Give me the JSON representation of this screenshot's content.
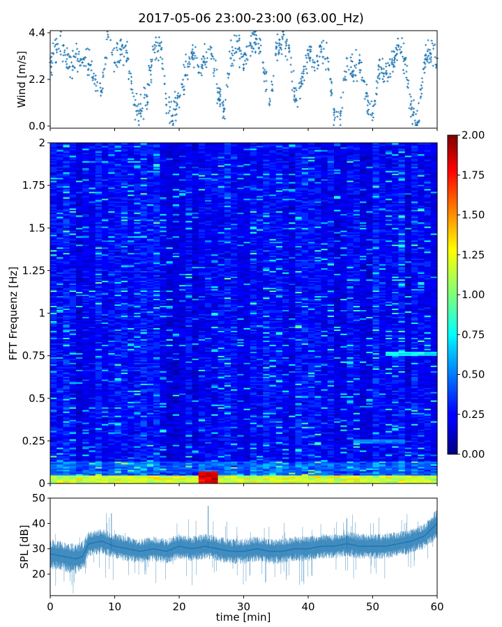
{
  "figure": {
    "title": "2017-05-06 23:00-23:00 (63.00_Hz)"
  },
  "chart_data": [
    {
      "type": "scatter",
      "panel": "wind",
      "ylabel": "Wind [m/s]",
      "xlabel": "",
      "xlim": [
        0,
        60
      ],
      "ylim": [
        -0.1,
        4.5
      ],
      "yticks": [
        0.0,
        2.2,
        4.4
      ],
      "ytick_labels": [
        "0.0",
        "2.2",
        "4.4"
      ],
      "xticks": [
        0,
        10,
        20,
        30,
        40,
        50,
        60
      ],
      "marker_color": "#1f77b4",
      "marker": "+",
      "grid": false,
      "series": [
        {
          "x": [
            0,
            1,
            2,
            3,
            4,
            5,
            6,
            7,
            8,
            9,
            10,
            11,
            12,
            13,
            14,
            15,
            16,
            17,
            18,
            19,
            20,
            21,
            22,
            23,
            24,
            25,
            26,
            27,
            28,
            29,
            30,
            31,
            32,
            33,
            34,
            35,
            36,
            37,
            38,
            39,
            40,
            41,
            42,
            43,
            44,
            45,
            46,
            47,
            48,
            49,
            50,
            51,
            52,
            53,
            54,
            55,
            56,
            57,
            58,
            59,
            60
          ],
          "y": [
            3.0,
            3.6,
            3.8,
            2.8,
            3.4,
            3.0,
            2.9,
            2.2,
            1.6,
            4.2,
            3.0,
            3.6,
            3.2,
            1.0,
            0.6,
            1.4,
            3.6,
            3.9,
            1.0,
            0.5,
            1.4,
            2.4,
            3.5,
            2.8,
            3.0,
            3.4,
            1.6,
            0.8,
            3.2,
            4.0,
            2.9,
            3.8,
            4.1,
            3.0,
            1.0,
            3.4,
            4.2,
            3.8,
            1.2,
            2.0,
            3.4,
            3.0,
            3.5,
            3.2,
            0.8,
            0.6,
            3.2,
            2.6,
            3.0,
            1.4,
            0.6,
            2.8,
            2.5,
            3.0,
            3.8,
            3.2,
            0.8,
            0.2,
            3.0,
            3.4,
            3.2
          ]
        }
      ]
    },
    {
      "type": "heatmap",
      "panel": "spectrogram",
      "ylabel": "FFT Frequenz [Hz]",
      "xlabel": "",
      "xlim": [
        0,
        60
      ],
      "ylim": [
        0,
        2
      ],
      "yticks": [
        0,
        0.25,
        0.5,
        0.75,
        1,
        1.25,
        1.5,
        1.75,
        2
      ],
      "ytick_labels": [
        "0",
        "0.25",
        "0.5",
        "0.75",
        "1",
        "1.25",
        "1.5",
        "1.75",
        "2"
      ],
      "colormap": "jet",
      "colorbar": {
        "vmin": 0.0,
        "vmax": 2.0,
        "ticks": [
          0.0,
          0.25,
          0.5,
          0.75,
          1.0,
          1.25,
          1.5,
          1.75,
          2.0
        ],
        "tick_labels": [
          "0.00",
          "0.25",
          "0.50",
          "0.75",
          "1.00",
          "1.25",
          "1.50",
          "1.75",
          "2.00"
        ]
      },
      "typical_level": 0.2,
      "features": [
        {
          "description_level": "low-frequency band",
          "y_range": [
            0,
            0.05
          ],
          "level": 1.2
        },
        {
          "description_level": "peak",
          "x_range": [
            23.5,
            26
          ],
          "y_range": [
            0,
            0.07
          ],
          "level": 2.0
        },
        {
          "description_level": "line",
          "x_range": [
            52,
            60
          ],
          "y": 0.76,
          "level": 0.8
        },
        {
          "description_level": "line",
          "x_range": [
            47,
            55
          ],
          "y": 0.25,
          "level": 0.55
        }
      ]
    },
    {
      "type": "line",
      "panel": "spl",
      "ylabel": "SPL [dB]",
      "xlabel": "time [min]",
      "xlim": [
        0,
        60
      ],
      "ylim": [
        11.5,
        50
      ],
      "yticks": [
        20,
        30,
        40,
        50
      ],
      "ytick_labels": [
        "20",
        "30",
        "40",
        "50"
      ],
      "xticks": [
        0,
        10,
        20,
        30,
        40,
        50,
        60
      ],
      "xtick_labels": [
        "0",
        "10",
        "20",
        "30",
        "40",
        "50",
        "60"
      ],
      "line_color": "#1f77b4",
      "grid": false,
      "series": [
        {
          "x": [
            0,
            2,
            4,
            5,
            6,
            8,
            10,
            12,
            14,
            16,
            18,
            20,
            22,
            24,
            26,
            28,
            30,
            32,
            34,
            36,
            38,
            40,
            42,
            44,
            46,
            48,
            50,
            52,
            54,
            56,
            58,
            60
          ],
          "y": [
            28,
            27,
            26,
            27,
            32,
            33,
            31,
            30,
            29,
            30,
            29,
            31,
            30,
            31,
            30,
            29,
            29,
            30,
            29,
            29,
            30,
            30,
            31,
            31,
            32,
            31,
            31,
            31,
            32,
            33,
            35,
            40
          ],
          "band": [
            6,
            6,
            6,
            6,
            5,
            5,
            5,
            5,
            5,
            5,
            5,
            5,
            5,
            5,
            5,
            5,
            5,
            5,
            5,
            5,
            5,
            5,
            5,
            5,
            5,
            5,
            5,
            5,
            5,
            5,
            5,
            6
          ]
        }
      ]
    }
  ]
}
